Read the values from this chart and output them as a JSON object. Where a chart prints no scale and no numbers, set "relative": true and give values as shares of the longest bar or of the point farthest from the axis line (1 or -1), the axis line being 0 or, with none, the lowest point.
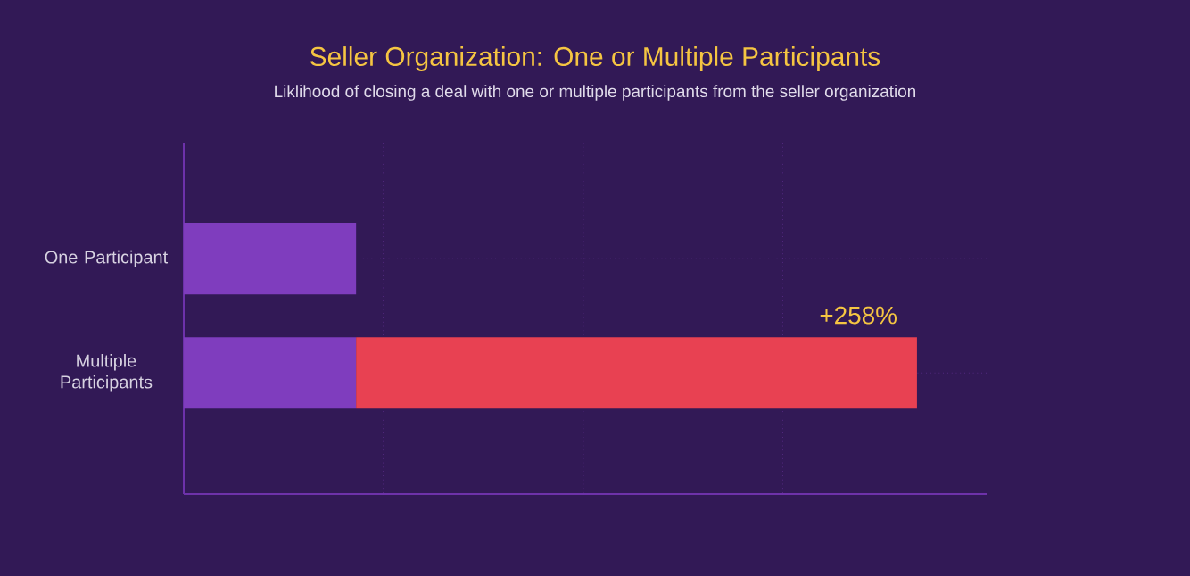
{
  "chart_data": {
    "type": "bar",
    "orientation": "horizontal",
    "stacked": true,
    "relative": true,
    "title": "Seller Organization: One or Multiple Participants",
    "subtitle": "Liklihood of closing a deal with one or multiple participants from the seller organization",
    "categories": [
      "One Participant",
      "Multiple Participants"
    ],
    "series": [
      {
        "color": "#7f3dbe",
        "values": [
          0.235,
          0.235
        ]
      },
      {
        "color": "#e84152",
        "values": [
          null,
          0.765
        ]
      }
    ],
    "annotations": [
      {
        "text": "+258%",
        "x": 1,
        "y": "Multiple Participants"
      }
    ],
    "grid": true
  }
}
